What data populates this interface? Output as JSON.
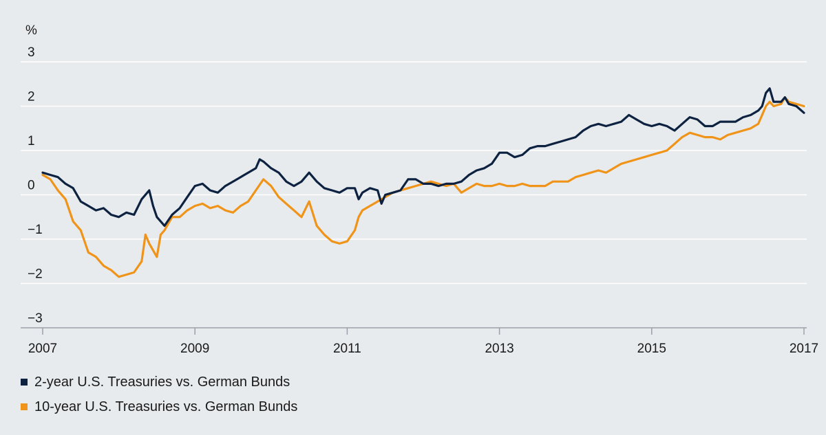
{
  "chart_data": {
    "type": "line",
    "title": "",
    "ylabel": "%",
    "xlabel": "",
    "xlim": [
      2007,
      2017
    ],
    "ylim": [
      -3,
      3
    ],
    "grid": "horizontal",
    "legend_position": "bottom-left",
    "y_ticks": [
      "3",
      "2",
      "1",
      "0",
      "−1",
      "−2",
      "−3"
    ],
    "y_tick_values": [
      3,
      2,
      1,
      0,
      -1,
      -2,
      -3
    ],
    "x_ticks": [
      "2007",
      "2009",
      "2011",
      "2013",
      "2015",
      "2017"
    ],
    "x_tick_values": [
      2007,
      2009,
      2011,
      2013,
      2015,
      2017
    ],
    "series": [
      {
        "name": "2-year U.S. Treasuries vs. German Bunds",
        "color": "#0d2240",
        "points": [
          [
            2007.0,
            0.5
          ],
          [
            2007.1,
            0.45
          ],
          [
            2007.2,
            0.4
          ],
          [
            2007.3,
            0.25
          ],
          [
            2007.4,
            0.15
          ],
          [
            2007.5,
            -0.15
          ],
          [
            2007.6,
            -0.25
          ],
          [
            2007.7,
            -0.35
          ],
          [
            2007.8,
            -0.3
          ],
          [
            2007.9,
            -0.45
          ],
          [
            2008.0,
            -0.5
          ],
          [
            2008.1,
            -0.4
          ],
          [
            2008.2,
            -0.45
          ],
          [
            2008.3,
            -0.1
          ],
          [
            2008.4,
            0.1
          ],
          [
            2008.45,
            -0.25
          ],
          [
            2008.5,
            -0.5
          ],
          [
            2008.6,
            -0.7
          ],
          [
            2008.7,
            -0.45
          ],
          [
            2008.8,
            -0.3
          ],
          [
            2008.9,
            -0.05
          ],
          [
            2009.0,
            0.2
          ],
          [
            2009.1,
            0.25
          ],
          [
            2009.2,
            0.1
          ],
          [
            2009.3,
            0.05
          ],
          [
            2009.4,
            0.2
          ],
          [
            2009.5,
            0.3
          ],
          [
            2009.6,
            0.4
          ],
          [
            2009.7,
            0.5
          ],
          [
            2009.8,
            0.6
          ],
          [
            2009.85,
            0.8
          ],
          [
            2009.9,
            0.75
          ],
          [
            2010.0,
            0.6
          ],
          [
            2010.1,
            0.5
          ],
          [
            2010.2,
            0.3
          ],
          [
            2010.3,
            0.2
          ],
          [
            2010.4,
            0.3
          ],
          [
            2010.5,
            0.5
          ],
          [
            2010.6,
            0.3
          ],
          [
            2010.7,
            0.15
          ],
          [
            2010.8,
            0.1
          ],
          [
            2010.9,
            0.05
          ],
          [
            2011.0,
            0.15
          ],
          [
            2011.1,
            0.15
          ],
          [
            2011.15,
            -0.1
          ],
          [
            2011.2,
            0.05
          ],
          [
            2011.3,
            0.15
          ],
          [
            2011.4,
            0.1
          ],
          [
            2011.45,
            -0.2
          ],
          [
            2011.5,
            0.0
          ],
          [
            2011.6,
            0.05
          ],
          [
            2011.7,
            0.1
          ],
          [
            2011.8,
            0.35
          ],
          [
            2011.9,
            0.35
          ],
          [
            2012.0,
            0.25
          ],
          [
            2012.1,
            0.25
          ],
          [
            2012.2,
            0.2
          ],
          [
            2012.3,
            0.25
          ],
          [
            2012.4,
            0.25
          ],
          [
            2012.5,
            0.3
          ],
          [
            2012.6,
            0.45
          ],
          [
            2012.7,
            0.55
          ],
          [
            2012.8,
            0.6
          ],
          [
            2012.9,
            0.7
          ],
          [
            2013.0,
            0.95
          ],
          [
            2013.1,
            0.95
          ],
          [
            2013.2,
            0.85
          ],
          [
            2013.3,
            0.9
          ],
          [
            2013.4,
            1.05
          ],
          [
            2013.5,
            1.1
          ],
          [
            2013.6,
            1.1
          ],
          [
            2013.7,
            1.15
          ],
          [
            2013.8,
            1.2
          ],
          [
            2013.9,
            1.25
          ],
          [
            2014.0,
            1.3
          ],
          [
            2014.1,
            1.45
          ],
          [
            2014.2,
            1.55
          ],
          [
            2014.3,
            1.6
          ],
          [
            2014.4,
            1.55
          ],
          [
            2014.5,
            1.6
          ],
          [
            2014.6,
            1.65
          ],
          [
            2014.7,
            1.8
          ],
          [
            2014.8,
            1.7
          ],
          [
            2014.9,
            1.6
          ],
          [
            2015.0,
            1.55
          ],
          [
            2015.1,
            1.6
          ],
          [
            2015.2,
            1.55
          ],
          [
            2015.3,
            1.45
          ],
          [
            2015.4,
            1.6
          ],
          [
            2015.5,
            1.75
          ],
          [
            2015.6,
            1.7
          ],
          [
            2015.7,
            1.55
          ],
          [
            2015.8,
            1.55
          ],
          [
            2015.9,
            1.65
          ],
          [
            2016.0,
            1.65
          ],
          [
            2016.1,
            1.65
          ],
          [
            2016.2,
            1.75
          ],
          [
            2016.3,
            1.8
          ],
          [
            2016.4,
            1.9
          ],
          [
            2016.45,
            2.0
          ],
          [
            2016.5,
            2.3
          ],
          [
            2016.55,
            2.4
          ],
          [
            2016.6,
            2.1
          ],
          [
            2016.7,
            2.1
          ],
          [
            2016.75,
            2.2
          ],
          [
            2016.8,
            2.05
          ],
          [
            2016.9,
            2.0
          ],
          [
            2017.0,
            1.85
          ]
        ]
      },
      {
        "name": "10-year U.S. Treasuries vs. German Bunds",
        "color": "#ef9419",
        "points": [
          [
            2007.0,
            0.45
          ],
          [
            2007.1,
            0.35
          ],
          [
            2007.2,
            0.1
          ],
          [
            2007.3,
            -0.1
          ],
          [
            2007.4,
            -0.6
          ],
          [
            2007.5,
            -0.8
          ],
          [
            2007.6,
            -1.3
          ],
          [
            2007.7,
            -1.4
          ],
          [
            2007.8,
            -1.6
          ],
          [
            2007.9,
            -1.7
          ],
          [
            2008.0,
            -1.85
          ],
          [
            2008.1,
            -1.8
          ],
          [
            2008.2,
            -1.75
          ],
          [
            2008.3,
            -1.5
          ],
          [
            2008.35,
            -0.9
          ],
          [
            2008.4,
            -1.1
          ],
          [
            2008.5,
            -1.4
          ],
          [
            2008.55,
            -0.9
          ],
          [
            2008.6,
            -0.8
          ],
          [
            2008.7,
            -0.5
          ],
          [
            2008.8,
            -0.5
          ],
          [
            2008.9,
            -0.35
          ],
          [
            2009.0,
            -0.25
          ],
          [
            2009.1,
            -0.2
          ],
          [
            2009.2,
            -0.3
          ],
          [
            2009.3,
            -0.25
          ],
          [
            2009.4,
            -0.35
          ],
          [
            2009.5,
            -0.4
          ],
          [
            2009.6,
            -0.25
          ],
          [
            2009.7,
            -0.15
          ],
          [
            2009.8,
            0.1
          ],
          [
            2009.9,
            0.35
          ],
          [
            2010.0,
            0.2
          ],
          [
            2010.1,
            -0.05
          ],
          [
            2010.2,
            -0.2
          ],
          [
            2010.3,
            -0.35
          ],
          [
            2010.4,
            -0.5
          ],
          [
            2010.5,
            -0.15
          ],
          [
            2010.6,
            -0.7
          ],
          [
            2010.7,
            -0.9
          ],
          [
            2010.8,
            -1.05
          ],
          [
            2010.9,
            -1.1
          ],
          [
            2011.0,
            -1.05
          ],
          [
            2011.1,
            -0.8
          ],
          [
            2011.15,
            -0.5
          ],
          [
            2011.2,
            -0.35
          ],
          [
            2011.3,
            -0.25
          ],
          [
            2011.4,
            -0.15
          ],
          [
            2011.5,
            -0.05
          ],
          [
            2011.6,
            0.05
          ],
          [
            2011.7,
            0.1
          ],
          [
            2011.8,
            0.15
          ],
          [
            2011.9,
            0.2
          ],
          [
            2012.0,
            0.25
          ],
          [
            2012.1,
            0.3
          ],
          [
            2012.2,
            0.25
          ],
          [
            2012.3,
            0.2
          ],
          [
            2012.4,
            0.25
          ],
          [
            2012.5,
            0.05
          ],
          [
            2012.6,
            0.15
          ],
          [
            2012.7,
            0.25
          ],
          [
            2012.8,
            0.2
          ],
          [
            2012.9,
            0.2
          ],
          [
            2013.0,
            0.25
          ],
          [
            2013.1,
            0.2
          ],
          [
            2013.2,
            0.2
          ],
          [
            2013.3,
            0.25
          ],
          [
            2013.4,
            0.2
          ],
          [
            2013.5,
            0.2
          ],
          [
            2013.6,
            0.2
          ],
          [
            2013.7,
            0.3
          ],
          [
            2013.8,
            0.3
          ],
          [
            2013.9,
            0.3
          ],
          [
            2014.0,
            0.4
          ],
          [
            2014.1,
            0.45
          ],
          [
            2014.2,
            0.5
          ],
          [
            2014.3,
            0.55
          ],
          [
            2014.4,
            0.5
          ],
          [
            2014.5,
            0.6
          ],
          [
            2014.6,
            0.7
          ],
          [
            2014.7,
            0.75
          ],
          [
            2014.8,
            0.8
          ],
          [
            2014.9,
            0.85
          ],
          [
            2015.0,
            0.9
          ],
          [
            2015.1,
            0.95
          ],
          [
            2015.2,
            1.0
          ],
          [
            2015.3,
            1.15
          ],
          [
            2015.4,
            1.3
          ],
          [
            2015.5,
            1.4
          ],
          [
            2015.6,
            1.35
          ],
          [
            2015.7,
            1.3
          ],
          [
            2015.8,
            1.3
          ],
          [
            2015.9,
            1.25
          ],
          [
            2016.0,
            1.35
          ],
          [
            2016.1,
            1.4
          ],
          [
            2016.2,
            1.45
          ],
          [
            2016.3,
            1.5
          ],
          [
            2016.4,
            1.6
          ],
          [
            2016.45,
            1.8
          ],
          [
            2016.5,
            2.0
          ],
          [
            2016.55,
            2.1
          ],
          [
            2016.6,
            2.0
          ],
          [
            2016.7,
            2.05
          ],
          [
            2016.75,
            2.2
          ],
          [
            2016.8,
            2.1
          ],
          [
            2016.9,
            2.05
          ],
          [
            2017.0,
            2.0
          ]
        ]
      }
    ]
  }
}
